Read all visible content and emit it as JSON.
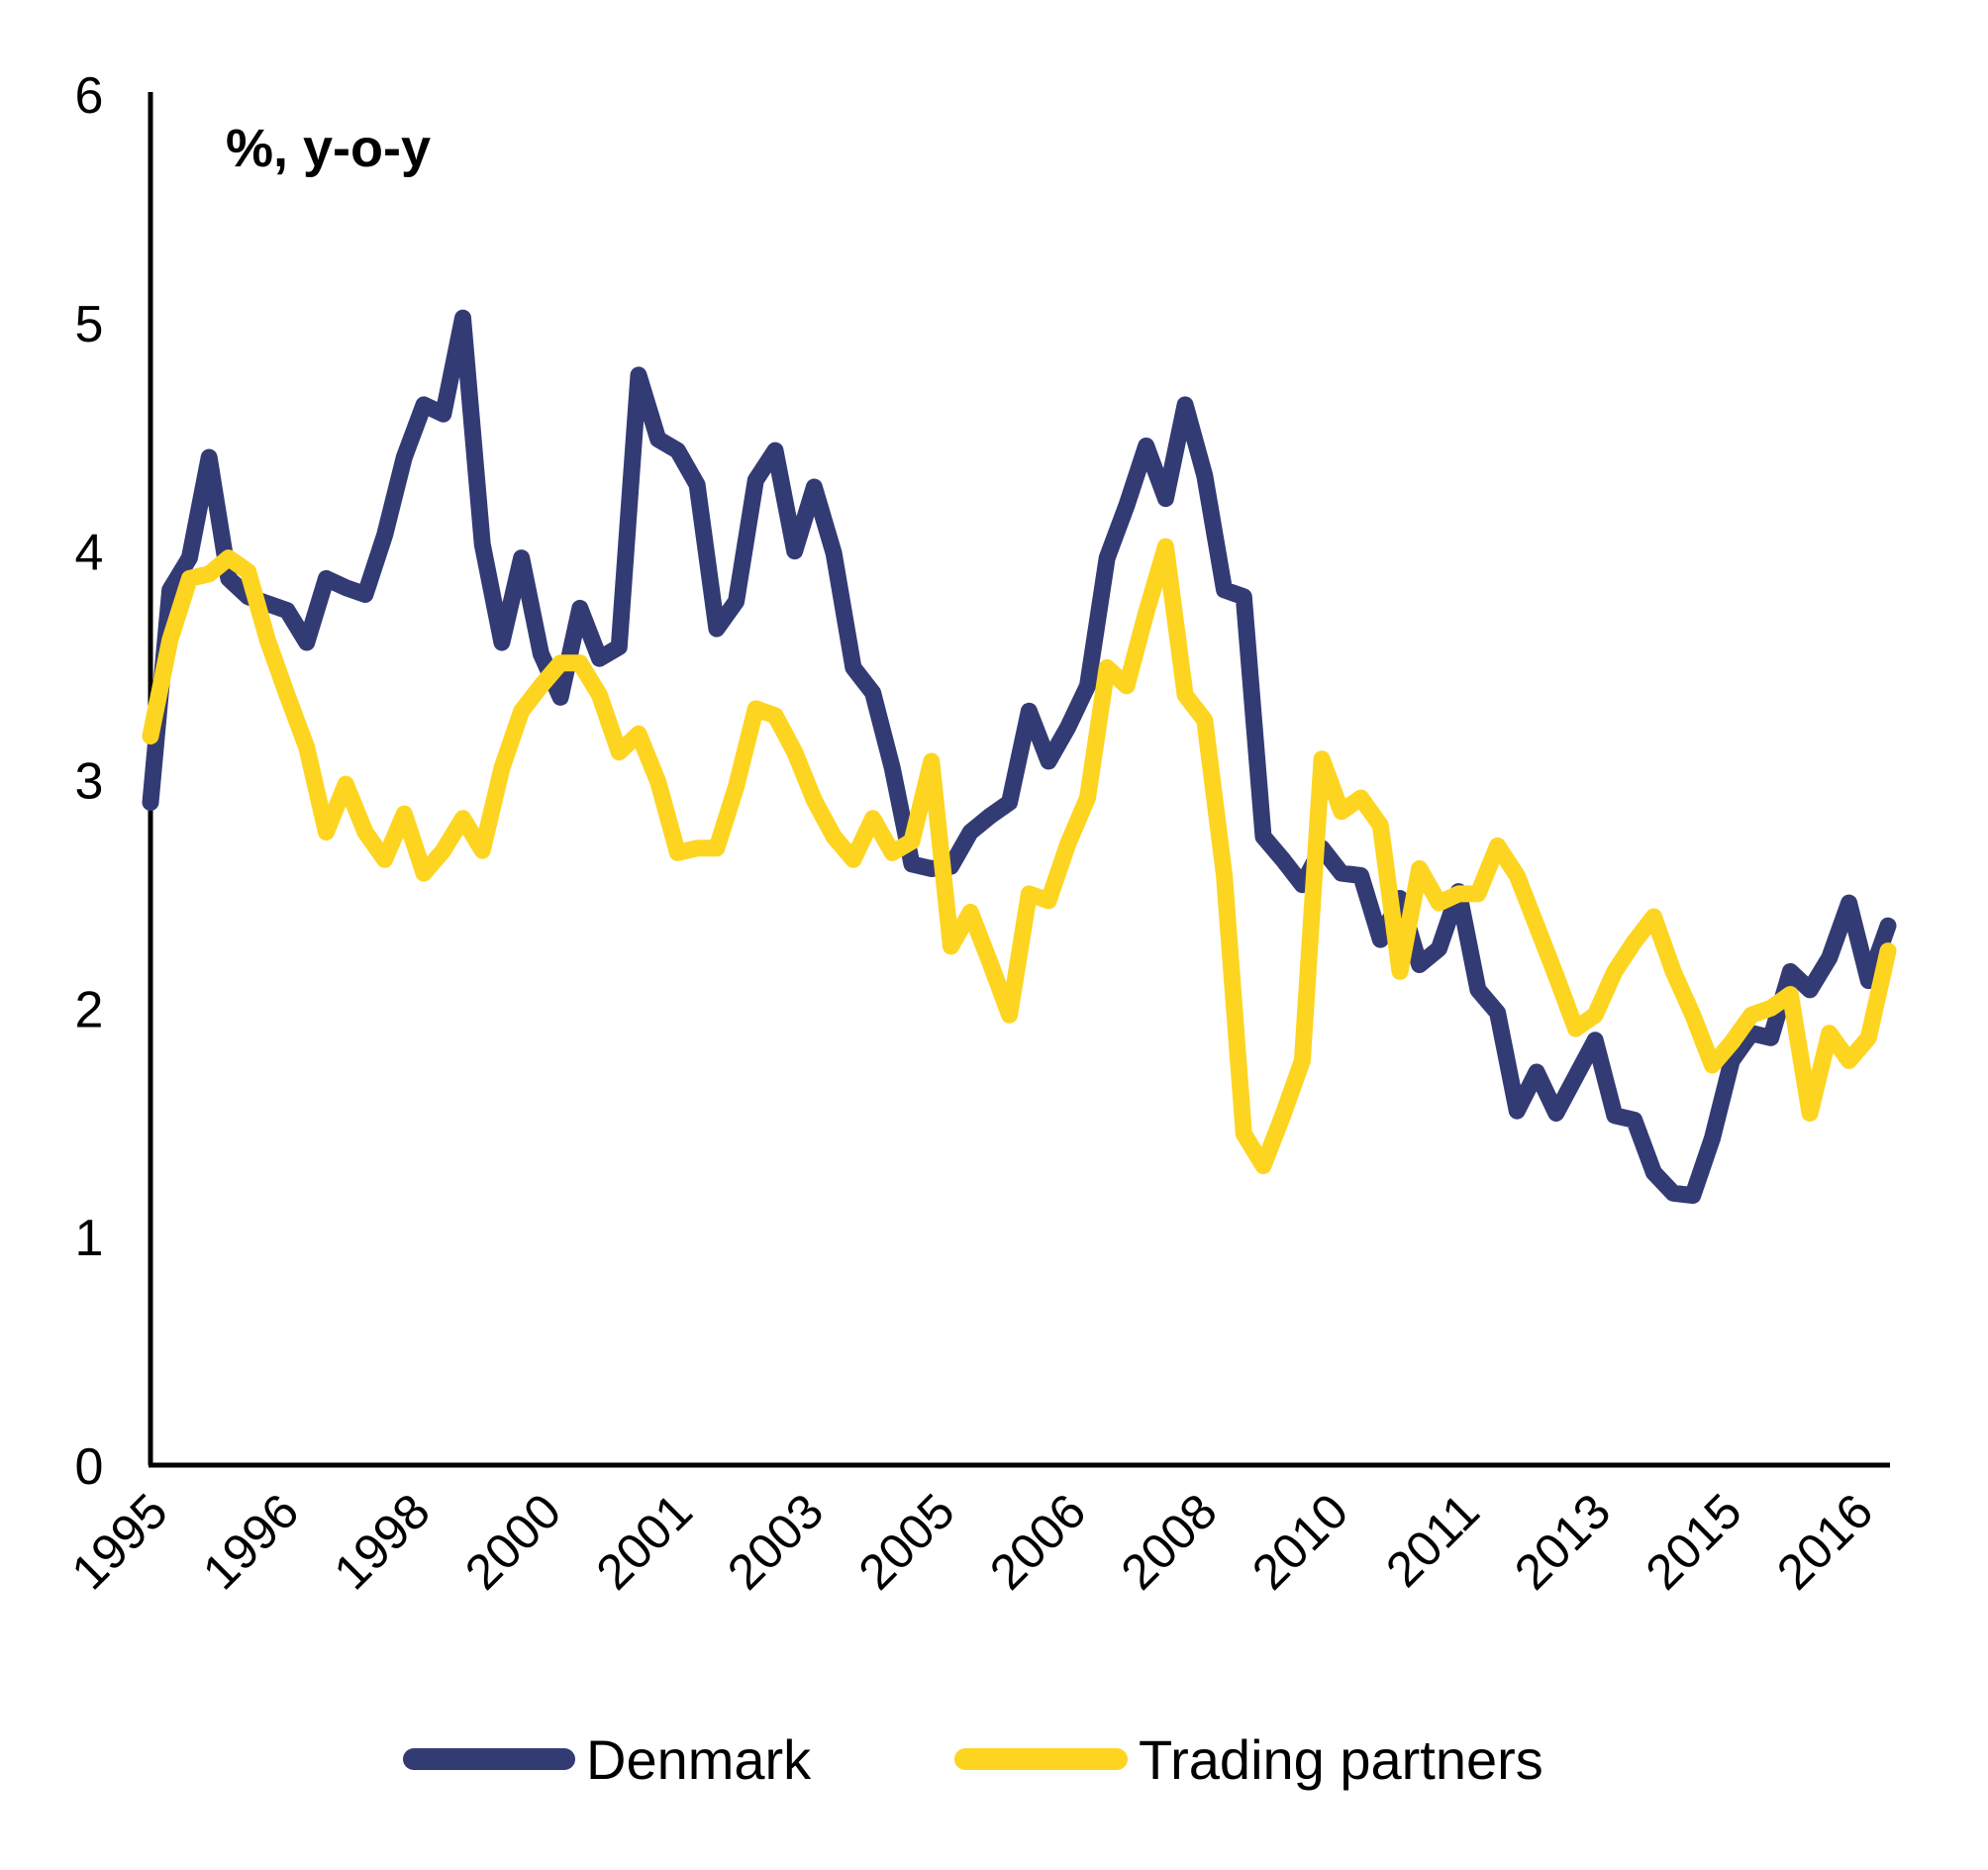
{
  "chart_data": {
    "type": "line",
    "title": "",
    "unit_label": "%, y-o-y",
    "xlabel": "",
    "ylabel": "",
    "ylim": [
      0,
      6
    ],
    "yticks": [
      "0",
      "1",
      "2",
      "3",
      "4",
      "5",
      "6"
    ],
    "x_tick_labels": [
      "1995",
      "1996",
      "1998",
      "2000",
      "2001",
      "2003",
      "2005",
      "2006",
      "2008",
      "2010",
      "2011",
      "2013",
      "2015",
      "2016"
    ],
    "x_period": "quarterly, 1995 to 2016",
    "grid": false,
    "legend_position": "bottom",
    "series": [
      {
        "name": "Denmark",
        "color": "#333b75",
        "values": [
          2.9,
          3.83,
          3.97,
          4.41,
          3.88,
          3.8,
          3.77,
          3.74,
          3.6,
          3.88,
          3.84,
          3.81,
          4.07,
          4.41,
          4.64,
          4.6,
          5.02,
          4.03,
          3.6,
          3.97,
          3.55,
          3.36,
          3.75,
          3.53,
          3.58,
          4.77,
          4.49,
          4.44,
          4.29,
          3.66,
          3.78,
          4.31,
          4.44,
          4.0,
          4.28,
          3.99,
          3.49,
          3.38,
          3.05,
          2.63,
          2.61,
          2.62,
          2.77,
          2.84,
          2.9,
          3.3,
          3.08,
          3.23,
          3.41,
          3.97,
          4.2,
          4.46,
          4.23,
          4.64,
          4.33,
          3.83,
          3.8,
          2.75,
          2.65,
          2.54,
          2.7,
          2.59,
          2.58,
          2.3,
          2.48,
          2.19,
          2.26,
          2.51,
          2.08,
          1.98,
          1.55,
          1.72,
          1.54,
          1.7,
          1.86,
          1.53,
          1.51,
          1.28,
          1.19,
          1.18,
          1.43,
          1.77,
          1.89,
          1.87,
          2.16,
          2.08,
          2.22,
          2.46,
          2.12,
          2.36
        ]
      },
      {
        "name": "Trading partners",
        "color": "#fdd520",
        "values": [
          3.19,
          3.61,
          3.88,
          3.9,
          3.97,
          3.91,
          3.61,
          3.37,
          3.14,
          2.77,
          2.98,
          2.77,
          2.65,
          2.85,
          2.59,
          2.69,
          2.83,
          2.69,
          3.05,
          3.3,
          3.41,
          3.51,
          3.51,
          3.37,
          3.12,
          3.2,
          2.99,
          2.68,
          2.7,
          2.7,
          2.97,
          3.31,
          3.28,
          3.12,
          2.91,
          2.75,
          2.65,
          2.83,
          2.68,
          2.73,
          3.08,
          2.27,
          2.42,
          2.2,
          1.97,
          2.5,
          2.47,
          2.72,
          2.92,
          3.49,
          3.41,
          3.73,
          4.02,
          3.37,
          3.26,
          2.58,
          1.45,
          1.31,
          1.53,
          1.77,
          3.09,
          2.86,
          2.92,
          2.8,
          2.16,
          2.61,
          2.46,
          2.5,
          2.5,
          2.71,
          2.58,
          2.36,
          2.14,
          1.91,
          1.97,
          2.16,
          2.29,
          2.4,
          2.16,
          1.97,
          1.75,
          1.85,
          1.97,
          2.0,
          2.06,
          1.54,
          1.89,
          1.77,
          1.87,
          2.25
        ]
      }
    ]
  }
}
